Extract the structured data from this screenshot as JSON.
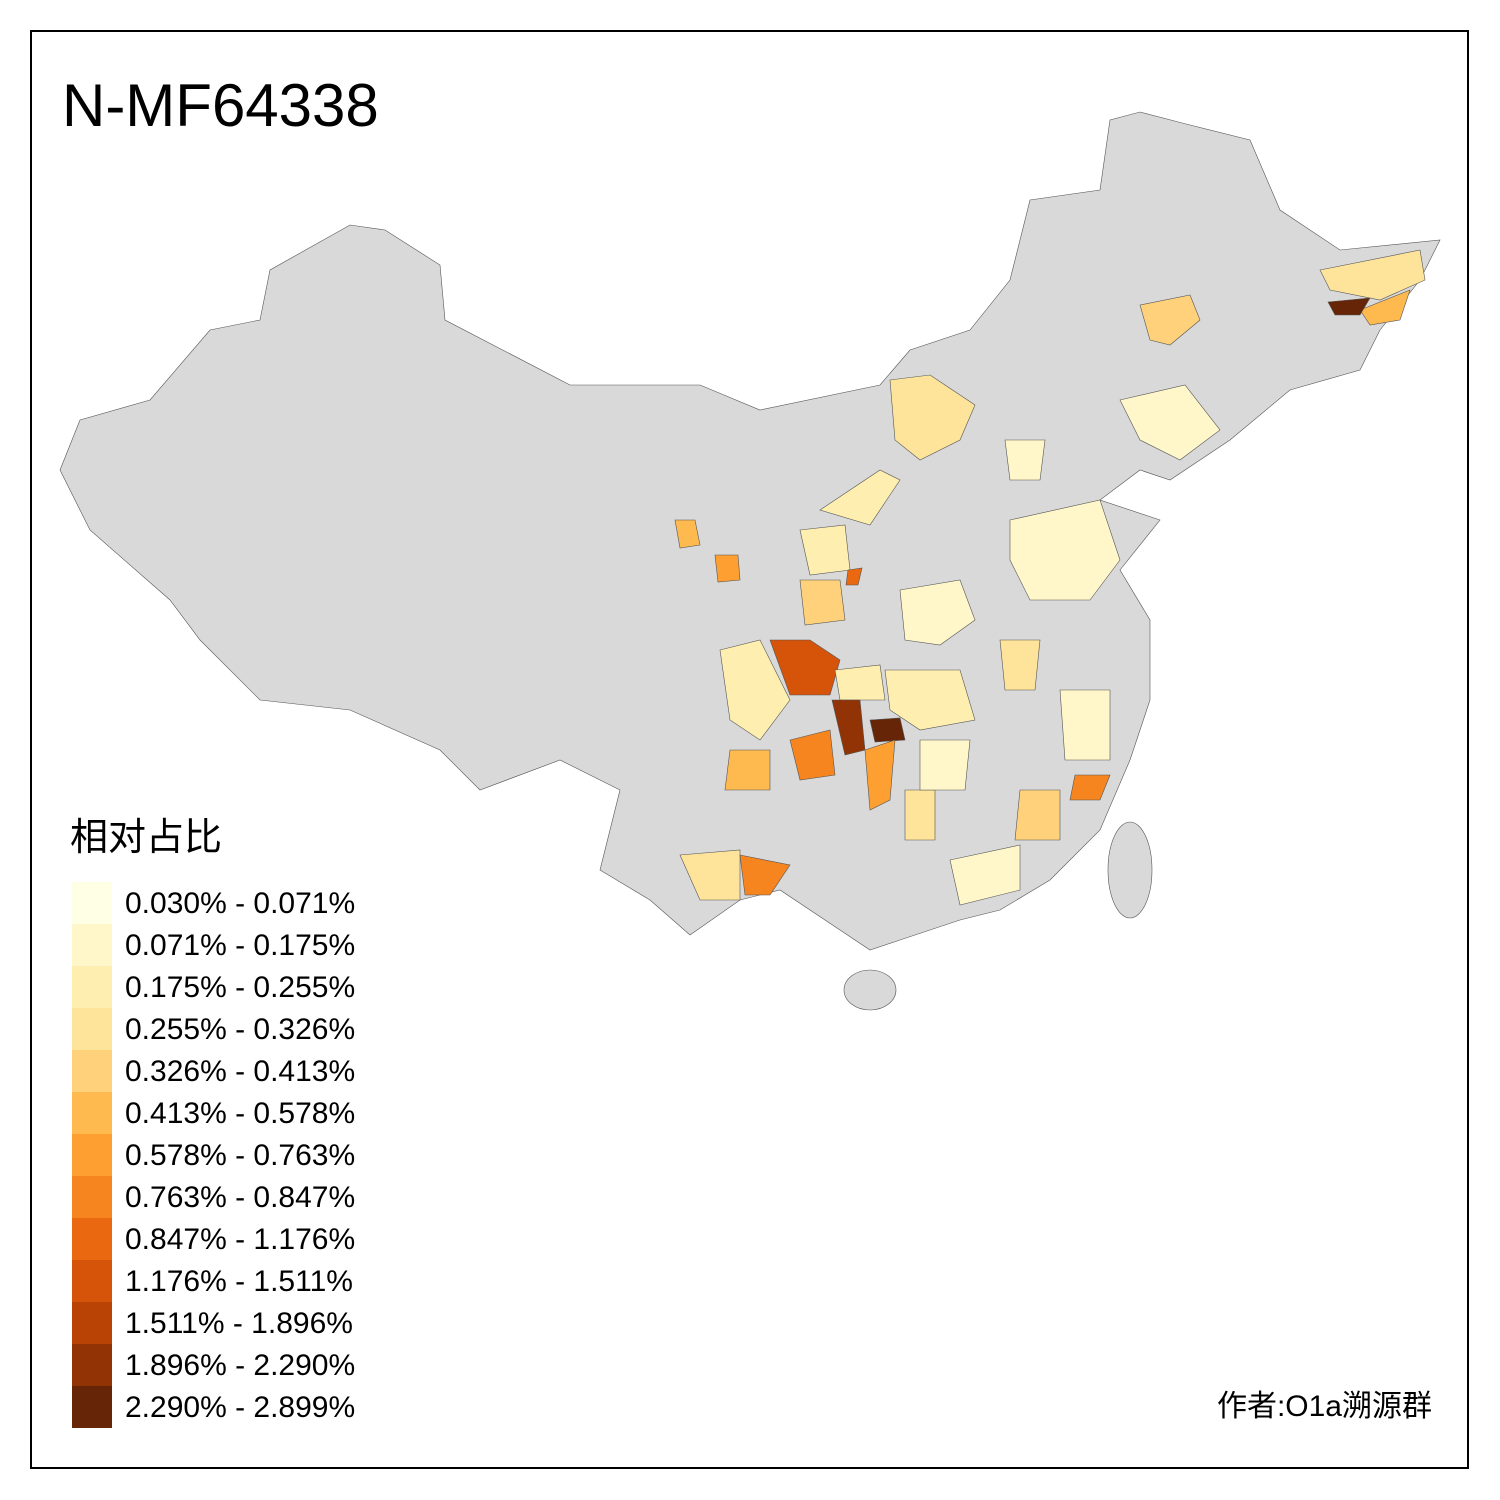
{
  "title": "N-MF64338",
  "legend": {
    "title": "相对占比",
    "items": [
      {
        "label": "0.030% - 0.071%",
        "color": "#FFFFE5"
      },
      {
        "label": "0.071% - 0.175%",
        "color": "#FFF7C9"
      },
      {
        "label": "0.175% - 0.255%",
        "color": "#FEEFB0"
      },
      {
        "label": "0.255% - 0.326%",
        "color": "#FEE39A"
      },
      {
        "label": "0.326% - 0.413%",
        "color": "#FED17A"
      },
      {
        "label": "0.413% - 0.578%",
        "color": "#FEBA4E"
      },
      {
        "label": "0.578% - 0.763%",
        "color": "#FE9F31"
      },
      {
        "label": "0.763% - 0.847%",
        "color": "#F7851F"
      },
      {
        "label": "0.847% - 1.176%",
        "color": "#EA6910"
      },
      {
        "label": "1.176% - 1.511%",
        "color": "#D6530A"
      },
      {
        "label": "1.511% - 1.896%",
        "color": "#B94205"
      },
      {
        "label": "1.896% - 2.290%",
        "color": "#923305"
      },
      {
        "label": "2.290% - 2.899%",
        "color": "#662506"
      }
    ]
  },
  "author": "作者:O1a溯源群"
}
